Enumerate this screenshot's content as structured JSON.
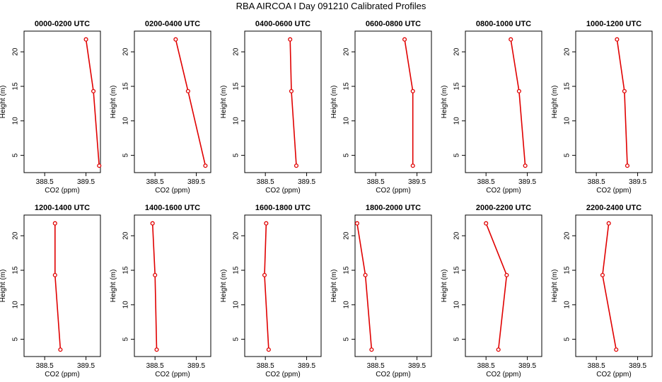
{
  "figure_title": "RBA AIRCOA I  Day 091210  Calibrated Profiles",
  "chart_data": [
    {
      "type": "line",
      "title": "0000-0200 UTC",
      "xlabel": "CO2 (ppm)",
      "ylabel": "Height (m)",
      "xlim": [
        388.0,
        389.85
      ],
      "ylim": [
        2.5,
        23
      ],
      "xticks": [
        388.5,
        389.5
      ],
      "yticks": [
        5,
        10,
        15,
        20
      ],
      "color": "#e00000",
      "points": [
        {
          "x": 389.5,
          "y": 21.8
        },
        {
          "x": 389.68,
          "y": 14.3
        },
        {
          "x": 389.82,
          "y": 3.5
        }
      ]
    },
    {
      "type": "line",
      "title": "0200-0400 UTC",
      "xlabel": "CO2 (ppm)",
      "ylabel": "Height (m)",
      "xlim": [
        388.0,
        389.85
      ],
      "ylim": [
        2.5,
        23
      ],
      "xticks": [
        388.5,
        389.5
      ],
      "yticks": [
        5,
        10,
        15,
        20
      ],
      "color": "#e00000",
      "points": [
        {
          "x": 389.0,
          "y": 21.8
        },
        {
          "x": 389.3,
          "y": 14.3
        },
        {
          "x": 389.72,
          "y": 3.5
        }
      ]
    },
    {
      "type": "line",
      "title": "0400-0600 UTC",
      "xlabel": "CO2 (ppm)",
      "ylabel": "Height (m)",
      "xlim": [
        388.0,
        389.85
      ],
      "ylim": [
        2.5,
        23
      ],
      "xticks": [
        388.5,
        389.5
      ],
      "yticks": [
        5,
        10,
        15,
        20
      ],
      "color": "#e00000",
      "points": [
        {
          "x": 389.1,
          "y": 21.8
        },
        {
          "x": 389.13,
          "y": 14.3
        },
        {
          "x": 389.25,
          "y": 3.5
        }
      ]
    },
    {
      "type": "line",
      "title": "0600-0800 UTC",
      "xlabel": "CO2 (ppm)",
      "ylabel": "Height (m)",
      "xlim": [
        388.0,
        389.85
      ],
      "ylim": [
        2.5,
        23
      ],
      "xticks": [
        388.5,
        389.5
      ],
      "yticks": [
        5,
        10,
        15,
        20
      ],
      "color": "#e00000",
      "points": [
        {
          "x": 389.2,
          "y": 21.8
        },
        {
          "x": 389.4,
          "y": 14.3
        },
        {
          "x": 389.4,
          "y": 3.5
        }
      ]
    },
    {
      "type": "line",
      "title": "0800-1000 UTC",
      "xlabel": "CO2 (ppm)",
      "ylabel": "Height (m)",
      "xlim": [
        388.0,
        389.85
      ],
      "ylim": [
        2.5,
        23
      ],
      "xticks": [
        388.5,
        389.5
      ],
      "yticks": [
        5,
        10,
        15,
        20
      ],
      "color": "#e00000",
      "points": [
        {
          "x": 389.1,
          "y": 21.8
        },
        {
          "x": 389.3,
          "y": 14.3
        },
        {
          "x": 389.45,
          "y": 3.5
        }
      ]
    },
    {
      "type": "line",
      "title": "1000-1200 UTC",
      "xlabel": "CO2 (ppm)",
      "ylabel": "Height (m)",
      "xlim": [
        388.0,
        389.85
      ],
      "ylim": [
        2.5,
        23
      ],
      "xticks": [
        388.5,
        389.5
      ],
      "yticks": [
        5,
        10,
        15,
        20
      ],
      "color": "#e00000",
      "points": [
        {
          "x": 389.0,
          "y": 21.8
        },
        {
          "x": 389.18,
          "y": 14.3
        },
        {
          "x": 389.25,
          "y": 3.5
        }
      ]
    },
    {
      "type": "line",
      "title": "1200-1400 UTC",
      "xlabel": "CO2 (ppm)",
      "ylabel": "Height (m)",
      "xlim": [
        388.0,
        389.85
      ],
      "ylim": [
        2.5,
        23
      ],
      "xticks": [
        388.5,
        389.5
      ],
      "yticks": [
        5,
        10,
        15,
        20
      ],
      "color": "#e00000",
      "points": [
        {
          "x": 388.75,
          "y": 21.8
        },
        {
          "x": 388.75,
          "y": 14.3
        },
        {
          "x": 388.88,
          "y": 3.5
        }
      ]
    },
    {
      "type": "line",
      "title": "1400-1600 UTC",
      "xlabel": "CO2 (ppm)",
      "ylabel": "Height (m)",
      "xlim": [
        388.0,
        389.85
      ],
      "ylim": [
        2.5,
        23
      ],
      "xticks": [
        388.5,
        389.5
      ],
      "yticks": [
        5,
        10,
        15,
        20
      ],
      "color": "#e00000",
      "points": [
        {
          "x": 388.44,
          "y": 21.8
        },
        {
          "x": 388.5,
          "y": 14.3
        },
        {
          "x": 388.54,
          "y": 3.5
        }
      ]
    },
    {
      "type": "line",
      "title": "1600-1800 UTC",
      "xlabel": "CO2 (ppm)",
      "ylabel": "Height (m)",
      "xlim": [
        388.0,
        389.85
      ],
      "ylim": [
        2.5,
        23
      ],
      "xticks": [
        388.5,
        389.5
      ],
      "yticks": [
        5,
        10,
        15,
        20
      ],
      "color": "#e00000",
      "points": [
        {
          "x": 388.52,
          "y": 21.8
        },
        {
          "x": 388.48,
          "y": 14.3
        },
        {
          "x": 388.58,
          "y": 3.5
        }
      ]
    },
    {
      "type": "line",
      "title": "1800-2000 UTC",
      "xlabel": "CO2 (ppm)",
      "ylabel": "Height (m)",
      "xlim": [
        388.0,
        389.85
      ],
      "ylim": [
        2.5,
        23
      ],
      "xticks": [
        388.5,
        389.5
      ],
      "yticks": [
        5,
        10,
        15,
        20
      ],
      "color": "#e00000",
      "points": [
        {
          "x": 388.05,
          "y": 21.8
        },
        {
          "x": 388.25,
          "y": 14.3
        },
        {
          "x": 388.4,
          "y": 3.5
        }
      ]
    },
    {
      "type": "line",
      "title": "2000-2200 UTC",
      "xlabel": "CO2 (ppm)",
      "ylabel": "Height (m)",
      "xlim": [
        388.0,
        389.85
      ],
      "ylim": [
        2.5,
        23
      ],
      "xticks": [
        388.5,
        389.5
      ],
      "yticks": [
        5,
        10,
        15,
        20
      ],
      "color": "#e00000",
      "points": [
        {
          "x": 388.5,
          "y": 21.8
        },
        {
          "x": 389.0,
          "y": 14.3
        },
        {
          "x": 388.8,
          "y": 3.5
        }
      ]
    },
    {
      "type": "line",
      "title": "2200-2400 UTC",
      "xlabel": "CO2 (ppm)",
      "ylabel": "Height (m)",
      "xlim": [
        388.0,
        389.85
      ],
      "ylim": [
        2.5,
        23
      ],
      "xticks": [
        388.5,
        389.5
      ],
      "yticks": [
        5,
        10,
        15,
        20
      ],
      "color": "#e00000",
      "points": [
        {
          "x": 388.8,
          "y": 21.8
        },
        {
          "x": 388.65,
          "y": 14.3
        },
        {
          "x": 388.98,
          "y": 3.5
        }
      ]
    }
  ]
}
